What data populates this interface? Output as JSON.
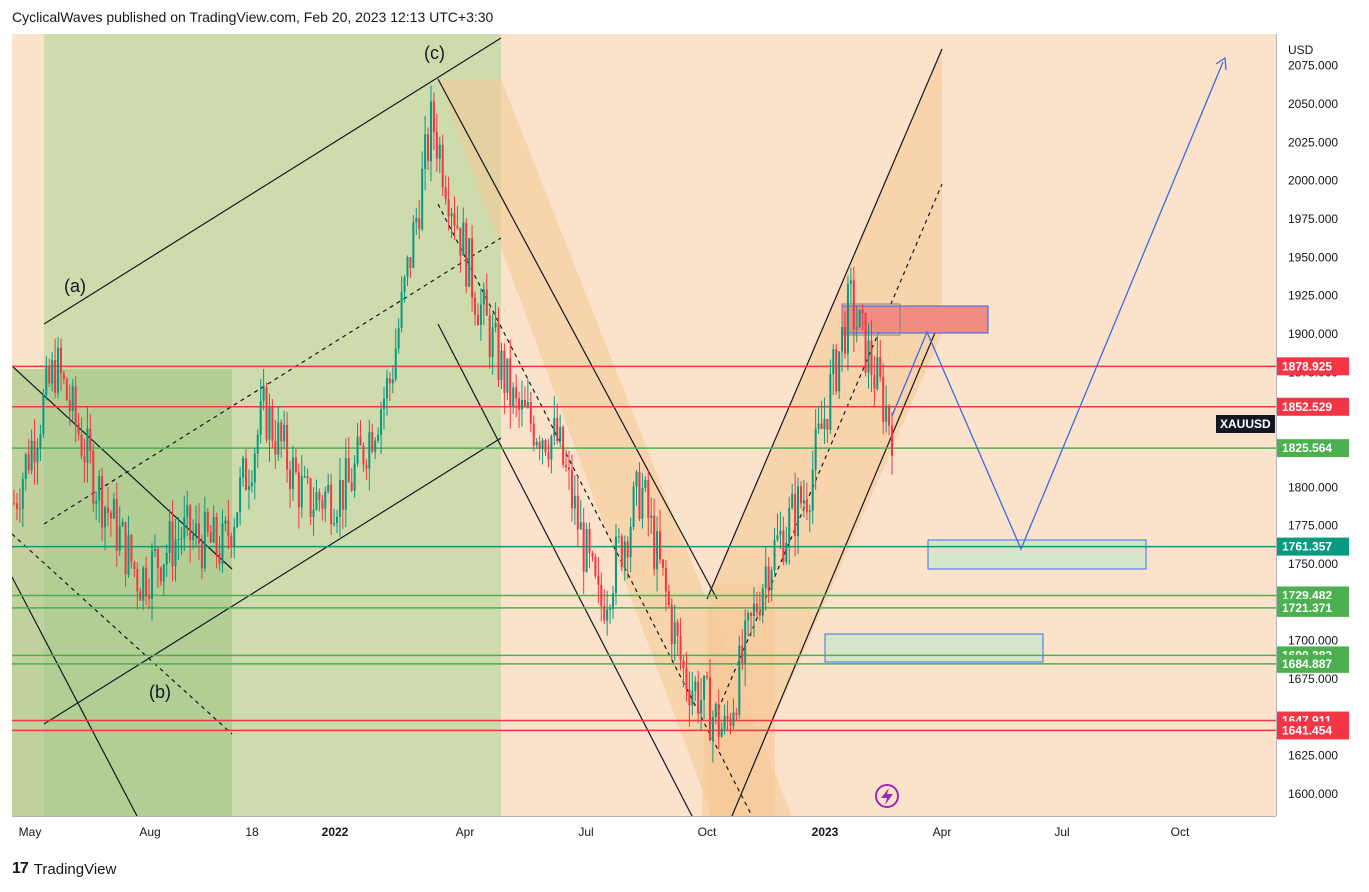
{
  "header": {
    "text": "CyclicalWaves published on TradingView.com, Feb 20, 2023 12:13 UTC+3:30"
  },
  "symbol": "XAUUSD",
  "currency": "USD",
  "footer": {
    "brand": "TradingView"
  },
  "chart_data": {
    "type": "candlestick",
    "symbol": "XAUUSD",
    "price_axis": {
      "currency": "USD",
      "ticks": [
        "2075.000",
        "2050.000",
        "2025.000",
        "2000.000",
        "1975.000",
        "1950.000",
        "1925.000",
        "1900.000",
        "1875.000",
        "1850.000",
        "1825.000",
        "1800.000",
        "1775.000",
        "1750.000",
        "1725.000",
        "1700.000",
        "1675.000",
        "1650.000",
        "1625.000",
        "1600.000"
      ],
      "ylim": [
        1590,
        2080
      ]
    },
    "time_axis": {
      "labels": [
        "May",
        "Aug",
        "18",
        "2022",
        "Apr",
        "Jul",
        "Oct",
        "2023",
        "Apr",
        "Jul",
        "Oct"
      ],
      "bold": [
        "2022",
        "2023"
      ]
    },
    "price_levels": [
      {
        "label": "1878.925",
        "value": 1878.925,
        "color": "#f23645"
      },
      {
        "label": "1852.529",
        "value": 1852.529,
        "color": "#f23645"
      },
      {
        "label": "1825.564",
        "value": 1825.564,
        "color": "#4caf50"
      },
      {
        "label": "1761.357",
        "value": 1761.357,
        "color": "#089981"
      },
      {
        "label": "1729.482",
        "value": 1729.482,
        "color": "#4caf50"
      },
      {
        "label": "1721.371",
        "value": 1721.371,
        "color": "#4caf50"
      },
      {
        "label": "1690.382",
        "value": 1690.382,
        "color": "#4caf50"
      },
      {
        "label": "1684.887",
        "value": 1684.887,
        "color": "#4caf50"
      },
      {
        "label": "1647.911",
        "value": 1647.911,
        "color": "#f23645"
      },
      {
        "label": "1641.454",
        "value": 1641.454,
        "color": "#f23645"
      }
    ],
    "wave_labels": [
      "(a)",
      "(b)",
      "(c)"
    ],
    "price_path": [
      [
        "May 2021",
        1790
      ],
      [
        "Jun 2021",
        1880
      ],
      [
        "Jul 2021",
        1800
      ],
      [
        "Aug 2021",
        1740
      ],
      [
        "Sep 2021",
        1770
      ],
      [
        "Oct 2021",
        1760
      ],
      [
        "Nov 2021",
        1850
      ],
      [
        "Dec 2021",
        1790
      ],
      [
        "Jan 2022",
        1800
      ],
      [
        "Feb 2022",
        1870
      ],
      [
        "Mar 2022",
        2040
      ],
      [
        "Apr 2022",
        1930
      ],
      [
        "May 2022",
        1850
      ],
      [
        "Jun 2022",
        1830
      ],
      [
        "Jul 2022",
        1720
      ],
      [
        "Aug 2022",
        1800
      ],
      [
        "Sep 2022",
        1680
      ],
      [
        "Oct 2022",
        1640
      ],
      [
        "Nov 2022",
        1750
      ],
      [
        "Dec 2022",
        1800
      ],
      [
        "Jan 2023",
        1920
      ],
      [
        "Feb 2023",
        1840
      ]
    ],
    "colors": {
      "up": "#089981",
      "down": "#f23645",
      "background": "#fbe3cb",
      "projection": "#3d6be0"
    }
  }
}
